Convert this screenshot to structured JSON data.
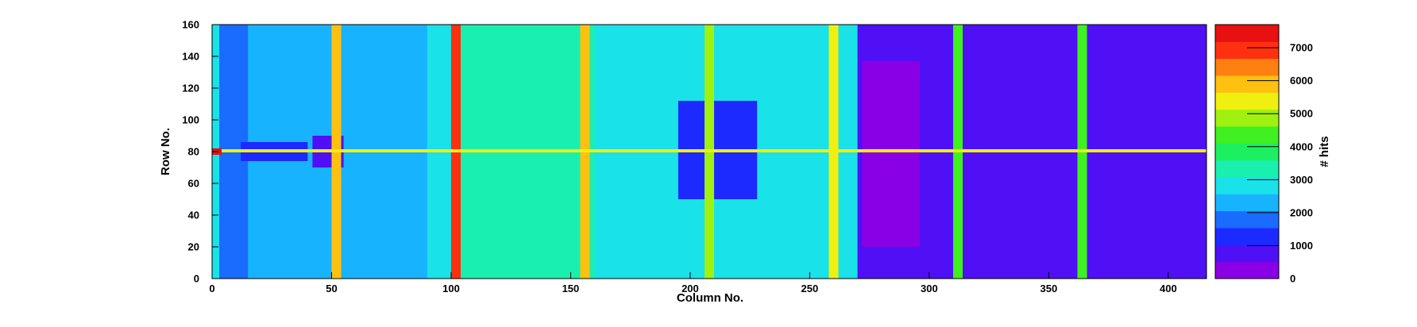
{
  "chart_data": {
    "type": "heatmap",
    "title": "",
    "xlabel": "Column No.",
    "ylabel": "Row No.",
    "zlabel": "# hits",
    "xlim": [
      0,
      416
    ],
    "ylim": [
      0,
      160
    ],
    "zlim": [
      0,
      7700
    ],
    "xticks": [
      0,
      50,
      100,
      150,
      200,
      250,
      300,
      350,
      400
    ],
    "yticks": [
      0,
      20,
      40,
      60,
      80,
      100,
      120,
      140,
      160
    ],
    "zticks": [
      0,
      1000,
      2000,
      3000,
      4000,
      5000,
      6000,
      7000
    ],
    "grid": false,
    "colormap": [
      "#8a00e6",
      "#4f10f5",
      "#1c2aff",
      "#1a6bff",
      "#18b3ff",
      "#19e2e8",
      "#19f0b0",
      "#1cf060",
      "#40f020",
      "#a0f010",
      "#f0f010",
      "#ffc010",
      "#ff8010",
      "#ff3010",
      "#e81010"
    ],
    "background_level": 2700,
    "regions": [
      {
        "x": [
          0,
          416
        ],
        "y": [
          0,
          160
        ],
        "z": 2700
      },
      {
        "x": [
          3,
          90
        ],
        "y": [
          0,
          160
        ],
        "z": 2300
      },
      {
        "x": [
          100,
          160
        ],
        "y": [
          0,
          160
        ],
        "z": 3100
      },
      {
        "x": [
          270,
          416
        ],
        "y": [
          0,
          160
        ],
        "z": 1000
      },
      {
        "x": [
          272,
          296
        ],
        "y": [
          20,
          137
        ],
        "z": 400
      },
      {
        "x": [
          296,
          416
        ],
        "y": [
          20,
          125
        ],
        "z": 800
      },
      {
        "x": [
          195,
          228
        ],
        "y": [
          50,
          112
        ],
        "z": 1100
      },
      {
        "x": [
          3,
          15
        ],
        "y": [
          0,
          160
        ],
        "z": 1800
      },
      {
        "x": [
          12,
          40
        ],
        "y": [
          74,
          86
        ],
        "z": 1200
      },
      {
        "x": [
          42,
          55
        ],
        "y": [
          70,
          90
        ],
        "z": 800
      },
      {
        "x": [
          100,
          104
        ],
        "y": [
          0,
          160
        ],
        "z": 7000
      },
      {
        "x": [
          50,
          54
        ],
        "y": [
          0,
          160
        ],
        "z": 6000
      },
      {
        "x": [
          154,
          158
        ],
        "y": [
          0,
          160
        ],
        "z": 6000
      },
      {
        "x": [
          206,
          210
        ],
        "y": [
          0,
          160
        ],
        "z": 5000
      },
      {
        "x": [
          258,
          262
        ],
        "y": [
          0,
          160
        ],
        "z": 5200
      },
      {
        "x": [
          310,
          314
        ],
        "y": [
          0,
          160
        ],
        "z": 4600
      },
      {
        "x": [
          362,
          366
        ],
        "y": [
          0,
          160
        ],
        "z": 4500
      },
      {
        "x": [
          0,
          416
        ],
        "y": [
          79.5,
          81.5
        ],
        "z": 5500
      },
      {
        "x": [
          0,
          4
        ],
        "y": [
          78,
          82
        ],
        "z": 7500
      }
    ]
  }
}
